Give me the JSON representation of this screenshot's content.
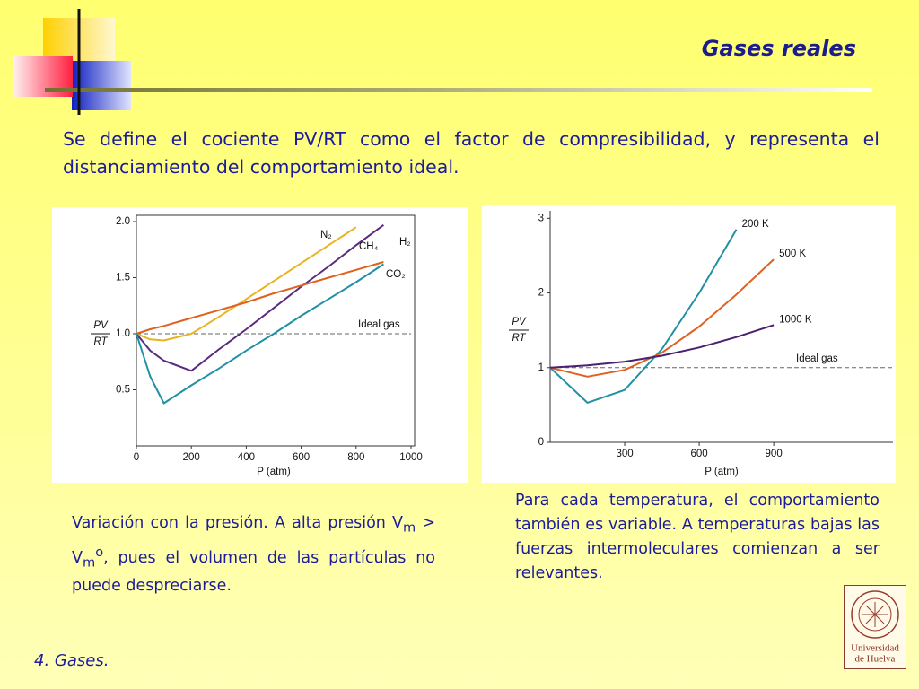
{
  "header": {
    "title": "Gases reales"
  },
  "intro": "Se define el cociente PV/RT como el factor de compresibilidad, y representa el distanciamiento del comportamiento ideal.",
  "caption_left": [
    "Variación con la presión. A alta presión V",
    "m",
    " > V",
    "m",
    "o",
    ", pues el volumen de las partículas no puede despreciarse."
  ],
  "caption_right": "Para cada temperatura, el comportamiento también es variable. A temperaturas bajas las fuerzas intermoleculares comienzan a ser relevantes.",
  "footer": "4. Gases.",
  "logo": [
    "Universidad",
    "de Huelva"
  ],
  "chart_data": [
    {
      "type": "line",
      "ylabel": [
        "PV",
        "RT"
      ],
      "xlabel": "P (atm)",
      "x": [
        0,
        50,
        100,
        200,
        300,
        400,
        500,
        600,
        700,
        800,
        900
      ],
      "series": [
        {
          "name": "N₂",
          "color": "#e8b420",
          "values": [
            1.0,
            0.95,
            0.94,
            1.0,
            1.15,
            1.31,
            1.47,
            1.63,
            1.79,
            1.95,
            null
          ]
        },
        {
          "name": "CH₄",
          "color": "#5a2a7e",
          "values": [
            1.0,
            0.85,
            0.76,
            0.67,
            0.86,
            1.04,
            1.23,
            1.42,
            1.6,
            1.79,
            1.97
          ]
        },
        {
          "name": "H₂",
          "color": "#e0601e",
          "values": [
            1.0,
            1.04,
            1.07,
            1.14,
            1.21,
            1.28,
            1.36,
            1.43,
            1.5,
            1.57,
            1.64
          ]
        },
        {
          "name": "CO₂",
          "color": "#2090a4",
          "values": [
            1.0,
            0.62,
            0.38,
            0.54,
            0.69,
            0.85,
            1.0,
            1.16,
            1.31,
            1.46,
            1.62
          ]
        }
      ],
      "reference": {
        "value": 1.0,
        "label": "Ideal gas"
      },
      "xlim": [
        0,
        1000
      ],
      "ylim": [
        0,
        2.0
      ],
      "xticks": [
        0,
        200,
        400,
        600,
        800,
        1000
      ],
      "yticks": [
        {
          "value": 0.5,
          "label": "0.5"
        },
        {
          "value": 1.0,
          "label": "1.0"
        },
        {
          "value": 1.5,
          "label": "1.5"
        },
        {
          "value": 2.0,
          "label": "2.0"
        }
      ]
    },
    {
      "type": "line",
      "ylabel": [
        "PV",
        "RT"
      ],
      "xlabel": "P (atm)",
      "x": [
        0,
        150,
        300,
        450,
        600,
        750,
        900
      ],
      "series": [
        {
          "name": "200 K",
          "color": "#2090a4",
          "values": [
            1.0,
            0.53,
            0.7,
            1.25,
            2.0,
            2.85,
            null
          ]
        },
        {
          "name": "500 K",
          "color": "#e0601e",
          "values": [
            1.0,
            0.88,
            0.97,
            1.2,
            1.55,
            1.98,
            2.45
          ]
        },
        {
          "name": "1000 K",
          "color": "#4a2070",
          "values": [
            1.0,
            1.03,
            1.08,
            1.16,
            1.27,
            1.41,
            1.57
          ]
        }
      ],
      "reference": {
        "value": 1,
        "label": "Ideal gas"
      },
      "xlim": [
        0,
        1380
      ],
      "ylim": [
        0,
        3.1
      ],
      "xticks": [
        300,
        600,
        900
      ],
      "yticks": [
        0,
        1,
        2,
        3
      ]
    }
  ]
}
